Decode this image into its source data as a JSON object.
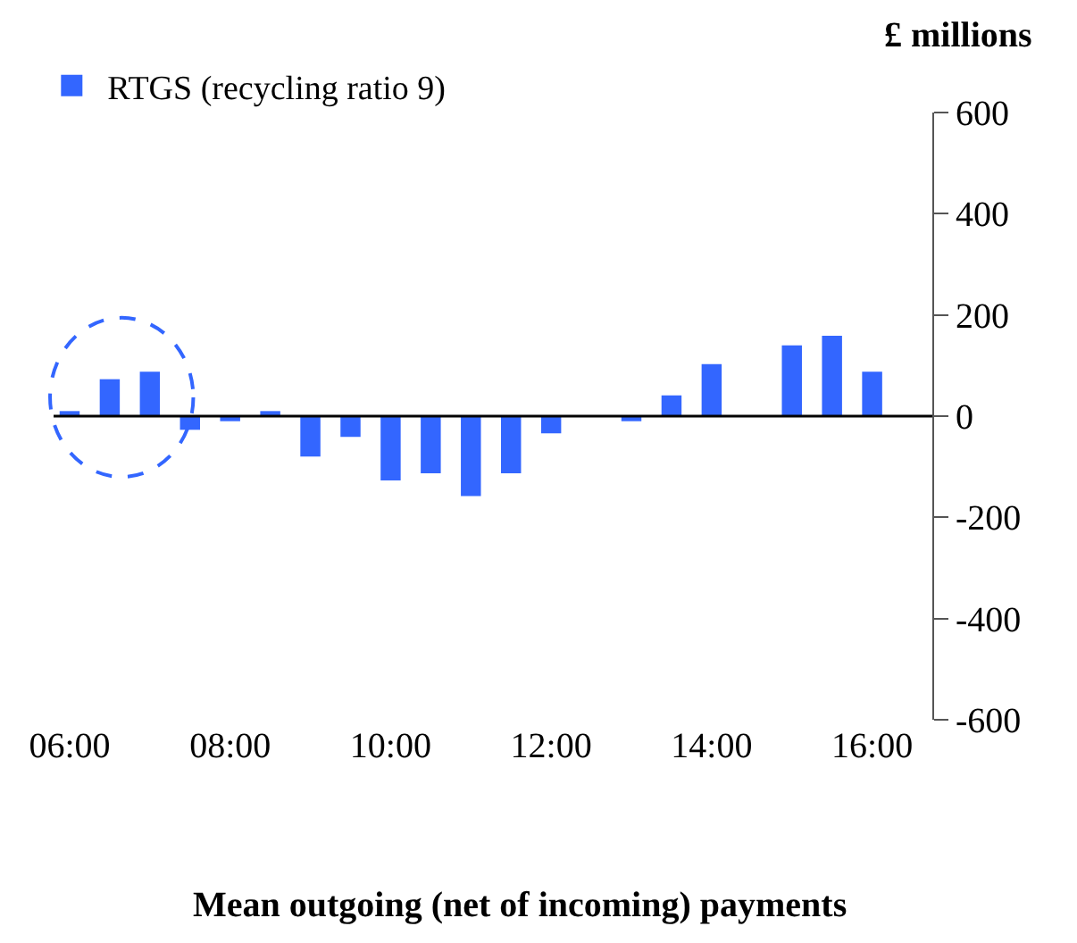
{
  "chart_data": {
    "type": "bar",
    "xlabel": "Mean outgoing (net of incoming) payments",
    "ylabel": "£ millions",
    "x": [
      6,
      6.5,
      7,
      7.5,
      8,
      8.5,
      9,
      9.5,
      10,
      10.5,
      11,
      11.5,
      12,
      12.5,
      13,
      13.5,
      14,
      14.5,
      15,
      15.5,
      16
    ],
    "series": [
      {
        "name": "RTGS (recycling ratio 9)",
        "color": "#3366ff",
        "values": [
          10,
          73,
          88,
          -27,
          -10,
          10,
          -80,
          -41,
          -127,
          -113,
          -158,
          -113,
          -34,
          null,
          -10,
          41,
          103,
          null,
          140,
          159,
          88
        ]
      }
    ],
    "xlim": [
      5.8,
      16.75
    ],
    "xticks": [
      {
        "value": 6,
        "label": "06:00"
      },
      {
        "value": 8,
        "label": "08:00"
      },
      {
        "value": 10,
        "label": "10:00"
      },
      {
        "value": 12,
        "label": "12:00"
      },
      {
        "value": 14,
        "label": "14:00"
      },
      {
        "value": 16,
        "label": "16:00"
      }
    ],
    "ylim": [
      -600,
      600
    ],
    "yticks": [
      -600,
      -400,
      -200,
      0,
      200,
      400,
      600
    ],
    "ref_lines": [
      {
        "axis": "y",
        "value": 0,
        "color": "#000000"
      }
    ],
    "legend": "top left"
  }
}
